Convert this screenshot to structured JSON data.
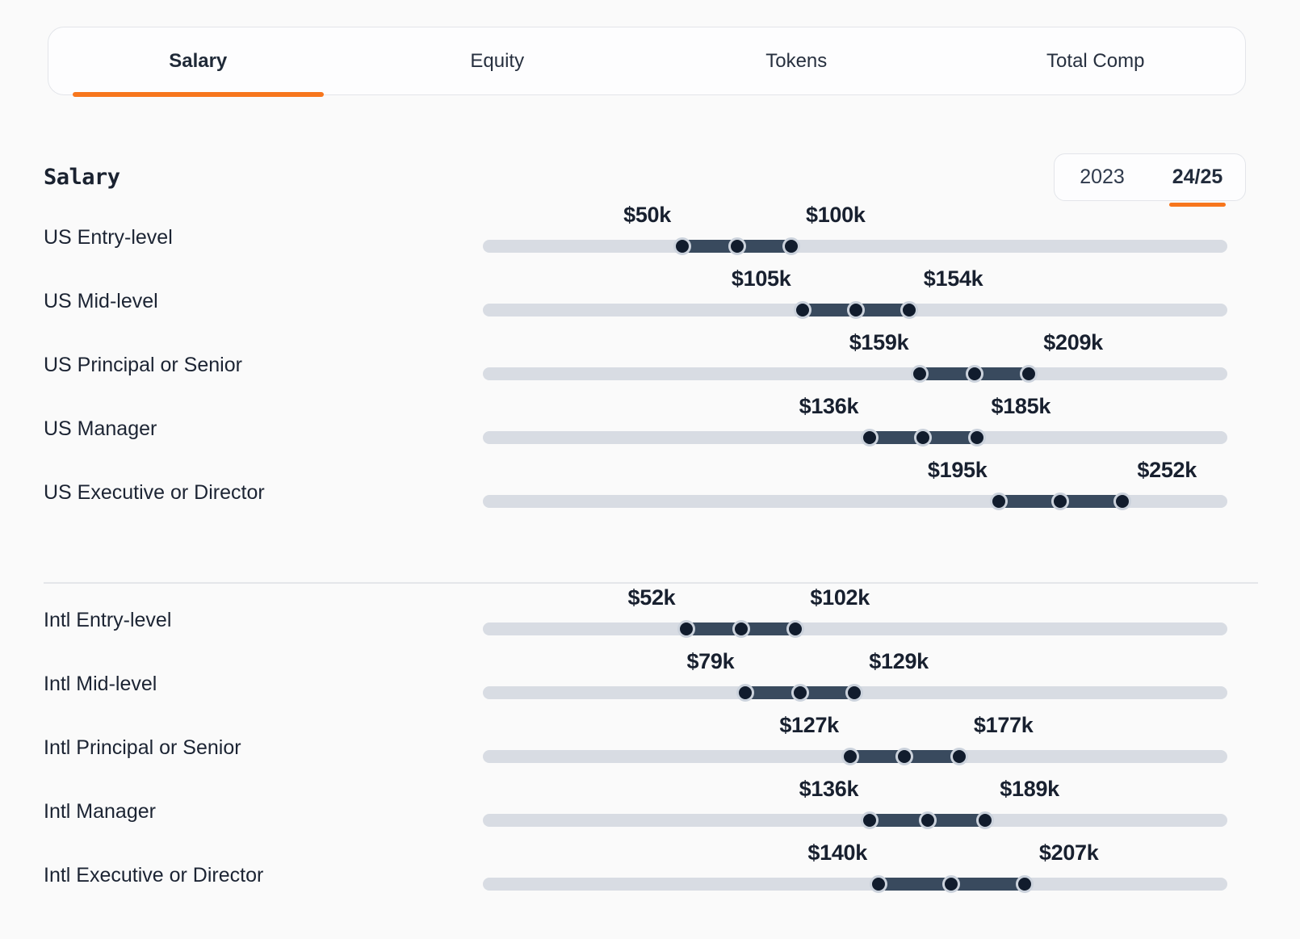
{
  "tab_bar": {
    "tabs": [
      {
        "label": "Salary",
        "active": true
      },
      {
        "label": "Equity",
        "active": false
      },
      {
        "label": "Tokens",
        "active": false
      },
      {
        "label": "Total Comp",
        "active": false
      }
    ]
  },
  "header": {
    "title": "Salary",
    "year_toggle": [
      {
        "label": "2023",
        "active": false
      },
      {
        "label": "24/25",
        "active": true
      }
    ]
  },
  "chart_data": {
    "type": "table",
    "title": "Salary",
    "unit": "USD thousands",
    "groups": [
      {
        "name": "US",
        "rows": [
          {
            "label": "US Entry-level",
            "min_k": 50,
            "max_k": 100,
            "min_label": "$50k",
            "max_label": "$100k"
          },
          {
            "label": "US Mid-level",
            "min_k": 105,
            "max_k": 154,
            "min_label": "$105k",
            "max_label": "$154k"
          },
          {
            "label": "US Principal or Senior",
            "min_k": 159,
            "max_k": 209,
            "min_label": "$159k",
            "max_label": "$209k"
          },
          {
            "label": "US Manager",
            "min_k": 136,
            "max_k": 185,
            "min_label": "$136k",
            "max_label": "$185k"
          },
          {
            "label": "US Executive or Director",
            "min_k": 195,
            "max_k": 252,
            "min_label": "$195k",
            "max_label": "$252k"
          }
        ]
      },
      {
        "name": "Intl",
        "rows": [
          {
            "label": "Intl Entry-level",
            "min_k": 52,
            "max_k": 102,
            "min_label": "$52k",
            "max_label": "$102k"
          },
          {
            "label": "Intl Mid-level",
            "min_k": 79,
            "max_k": 129,
            "min_label": "$79k",
            "max_label": "$129k"
          },
          {
            "label": "Intl Principal or Senior",
            "min_k": 127,
            "max_k": 177,
            "min_label": "$127k",
            "max_label": "$177k"
          },
          {
            "label": "Intl Manager",
            "min_k": 136,
            "max_k": 189,
            "min_label": "$136k",
            "max_label": "$189k"
          },
          {
            "label": "Intl Executive or Director",
            "min_k": 140,
            "max_k": 207,
            "min_label": "$140k",
            "max_label": "$207k"
          }
        ]
      }
    ]
  },
  "colors": {
    "accent_orange": "#f7761d",
    "slider_range": "#394a5e",
    "slider_dot": "#111c2d",
    "slider_track": "#d8dce3",
    "background": "#fafafa"
  }
}
